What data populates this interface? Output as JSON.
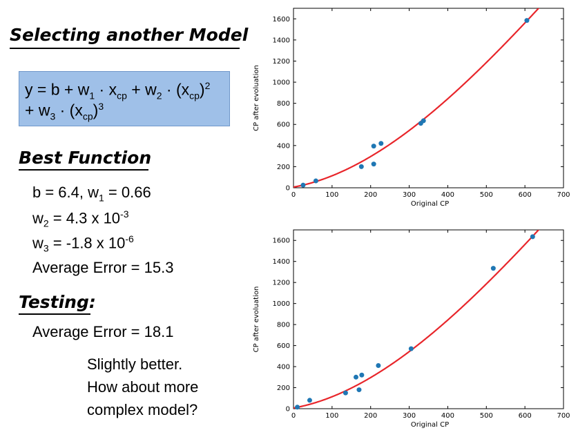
{
  "left_panel": {
    "title": "Selecting another Model",
    "formula": {
      "line1": [
        "y = b + w",
        "1",
        " · x",
        "cp",
        " + w",
        "2",
        " · (x",
        "cp",
        ")",
        "2"
      ],
      "line2": [
        "+ w",
        "3",
        " · (x",
        "cp",
        ")",
        "3"
      ]
    },
    "best_function_heading": "Best Function",
    "params": {
      "b_line_prefix": "b = 6.4, w",
      "b_line_sub": "1",
      "b_line_suffix": " = 0.66",
      "w2_w": "w",
      "w2_sub": "2",
      "w2_value": " = 4.3 x 10",
      "w2_exp": "-3",
      "w3_w": "w",
      "w3_sub": "3",
      "w3_value": " = -1.8 x 10",
      "w3_exp": "-6"
    },
    "train_error": "Average Error = 15.3",
    "testing_heading": "Testing:",
    "test_error": "Average Error = 18.1",
    "comment": [
      "Slightly better.",
      "How about more",
      "complex model?"
    ]
  },
  "chart_data": [
    {
      "type": "scatter",
      "xlabel": "Original CP",
      "ylabel": "CP after evoluation",
      "xlim": [
        0,
        700
      ],
      "ylim": [
        0,
        1700
      ],
      "xticks": [
        0,
        100,
        200,
        300,
        400,
        500,
        600,
        700
      ],
      "yticks": [
        0,
        200,
        400,
        600,
        800,
        1000,
        1200,
        1400,
        1600
      ],
      "grid": false,
      "points": {
        "x": [
          25,
          58,
          176,
          208,
          208,
          227,
          330,
          337,
          605
        ],
        "y": [
          25,
          65,
          200,
          225,
          395,
          420,
          610,
          635,
          1585
        ]
      },
      "fit_coefficients": {
        "b": 6.4,
        "w1": 0.66,
        "w2": 0.0043,
        "w3": -1.8e-06
      },
      "colors": {
        "points": "#1f77b4",
        "fit": "#e8252a"
      }
    },
    {
      "type": "scatter",
      "xlabel": "Original CP",
      "ylabel": "CP after evoluation",
      "xlim": [
        0,
        700
      ],
      "ylim": [
        0,
        1700
      ],
      "xticks": [
        0,
        100,
        200,
        300,
        400,
        500,
        600,
        700
      ],
      "yticks": [
        0,
        200,
        400,
        600,
        800,
        1000,
        1200,
        1400,
        1600
      ],
      "grid": false,
      "points": {
        "x": [
          10,
          42,
          135,
          162,
          170,
          177,
          220,
          305,
          518,
          620
        ],
        "y": [
          15,
          80,
          150,
          300,
          180,
          320,
          410,
          570,
          1335,
          1635
        ]
      },
      "fit_coefficients": {
        "b": 6.4,
        "w1": 0.66,
        "w2": 0.0043,
        "w3": -1.8e-06
      },
      "colors": {
        "points": "#1f77b4",
        "fit": "#e8252a"
      }
    }
  ]
}
